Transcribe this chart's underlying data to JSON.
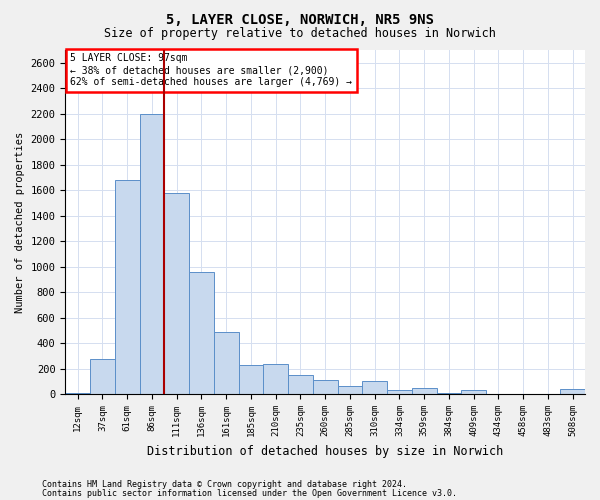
{
  "title": "5, LAYER CLOSE, NORWICH, NR5 9NS",
  "subtitle": "Size of property relative to detached houses in Norwich",
  "xlabel": "Distribution of detached houses by size in Norwich",
  "ylabel": "Number of detached properties",
  "footnote1": "Contains HM Land Registry data © Crown copyright and database right 2024.",
  "footnote2": "Contains public sector information licensed under the Open Government Licence v3.0.",
  "annotation_title": "5 LAYER CLOSE: 97sqm",
  "annotation_line1": "← 38% of detached houses are smaller (2,900)",
  "annotation_line2": "62% of semi-detached houses are larger (4,769) →",
  "bar_color": "#c8d9ee",
  "bar_edge_color": "#5b8fc9",
  "grid_color": "#d5dff0",
  "marker_line_color": "#aa0000",
  "categories": [
    "12sqm",
    "37sqm",
    "61sqm",
    "86sqm",
    "111sqm",
    "136sqm",
    "161sqm",
    "185sqm",
    "210sqm",
    "235sqm",
    "260sqm",
    "285sqm",
    "310sqm",
    "334sqm",
    "359sqm",
    "384sqm",
    "409sqm",
    "434sqm",
    "458sqm",
    "483sqm",
    "508sqm"
  ],
  "values": [
    10,
    280,
    1680,
    2200,
    1580,
    960,
    490,
    230,
    235,
    150,
    115,
    65,
    100,
    30,
    50,
    10,
    35,
    5,
    5,
    5,
    40
  ],
  "ylim": [
    0,
    2700
  ],
  "yticks": [
    0,
    200,
    400,
    600,
    800,
    1000,
    1200,
    1400,
    1600,
    1800,
    2000,
    2200,
    2400,
    2600
  ],
  "background_color": "#f0f0f0",
  "marker_bar_index": 3,
  "fig_width": 6.0,
  "fig_height": 5.0,
  "dpi": 100
}
